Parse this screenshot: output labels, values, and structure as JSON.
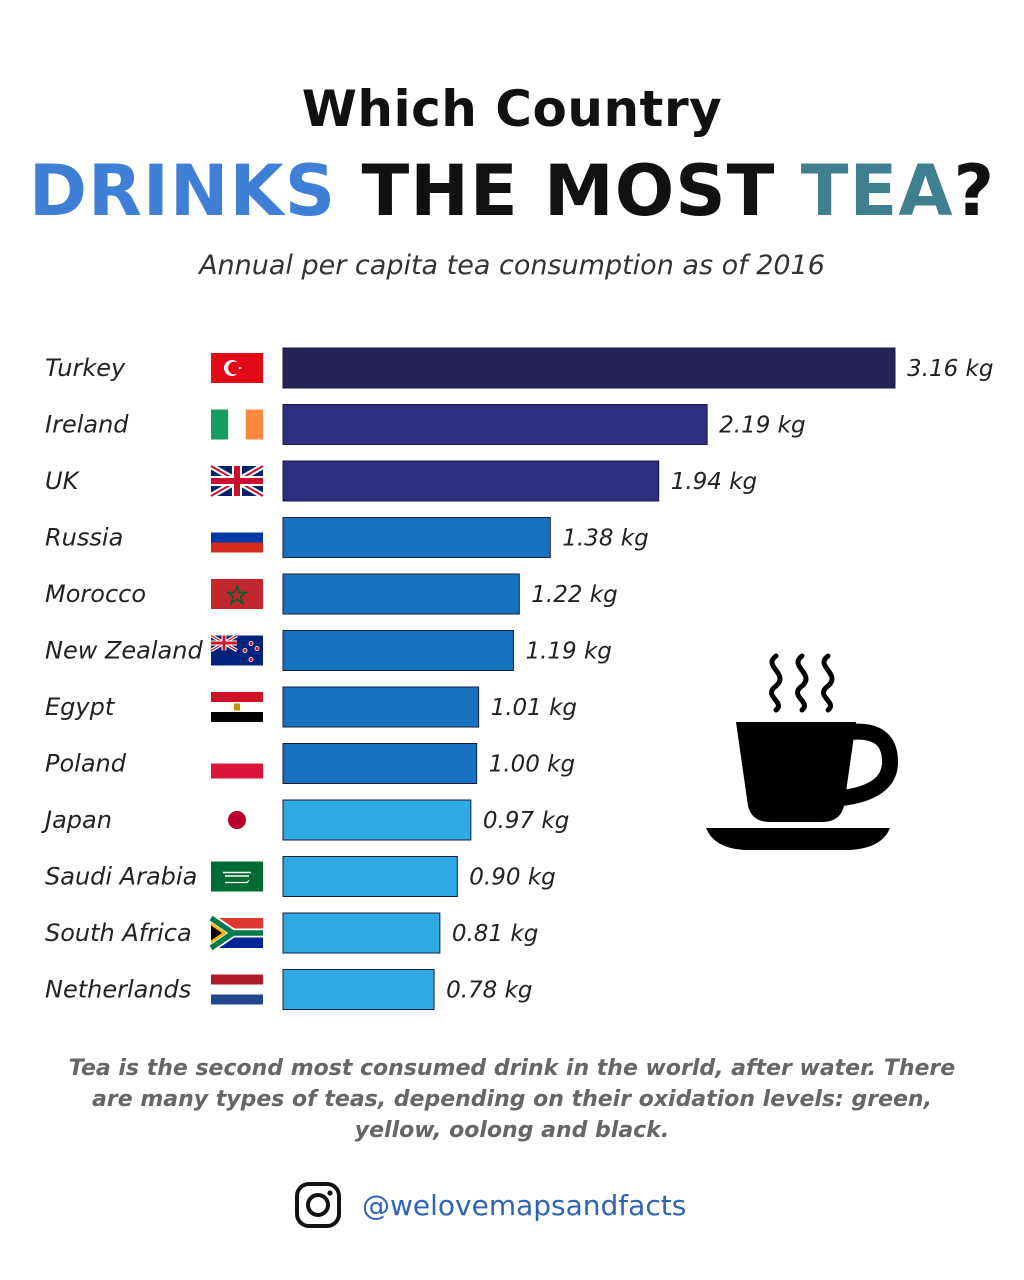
{
  "header": {
    "title_line1": "Which Country",
    "title_line2": [
      "DRINKS",
      "THE MOST",
      "TEA",
      "?"
    ],
    "subtitle": "Annual per capita tea consumption as of 2016"
  },
  "colors": {
    "title_blue": "#3f7fd6",
    "title_teal": "#3f7f8f",
    "tier_dark": "#25225a",
    "tier_navy": "#2d2e80",
    "tier_mid": "#1772bf",
    "tier_light": "#2fa9e2"
  },
  "chart_data": {
    "type": "bar",
    "orientation": "horizontal",
    "categories": [
      "Turkey",
      "Ireland",
      "UK",
      "Russia",
      "Morocco",
      "New Zealand",
      "Egypt",
      "Poland",
      "Japan",
      "Saudi Arabia",
      "South Africa",
      "Netherlands"
    ],
    "values": [
      3.16,
      2.19,
      1.94,
      1.38,
      1.22,
      1.19,
      1.01,
      1.0,
      0.97,
      0.9,
      0.81,
      0.78
    ],
    "value_labels": [
      "3.16 kg",
      "2.19 kg",
      "1.94 kg",
      "1.38 kg",
      "1.22 kg",
      "1.19 kg",
      "1.01 kg",
      "1.00 kg",
      "0.97 kg",
      "0.90 kg",
      "0.81 kg",
      "0.78 kg"
    ],
    "bar_colors": [
      "#25225a",
      "#2d2e80",
      "#2d2e80",
      "#1772bf",
      "#1772bf",
      "#1772bf",
      "#1772bf",
      "#1772bf",
      "#2fa9e2",
      "#2fa9e2",
      "#2fa9e2",
      "#2fa9e2"
    ],
    "flags": [
      "turkey-flag-icon",
      "ireland-flag-icon",
      "uk-flag-icon",
      "russia-flag-icon",
      "morocco-flag-icon",
      "new-zealand-flag-icon",
      "egypt-flag-icon",
      "poland-flag-icon",
      "japan-flag-icon",
      "saudi-arabia-flag-icon",
      "south-africa-flag-icon",
      "netherlands-flag-icon"
    ],
    "xlim": [
      0,
      3.16
    ],
    "grid": false
  },
  "note": "Tea is the second most consumed drink in the world, after water. There are many types of teas, depending on their oxidation levels: green, yellow, oolong and black.",
  "footer": {
    "icon": "instagram-icon",
    "handle": "@welovemapsandfacts"
  }
}
